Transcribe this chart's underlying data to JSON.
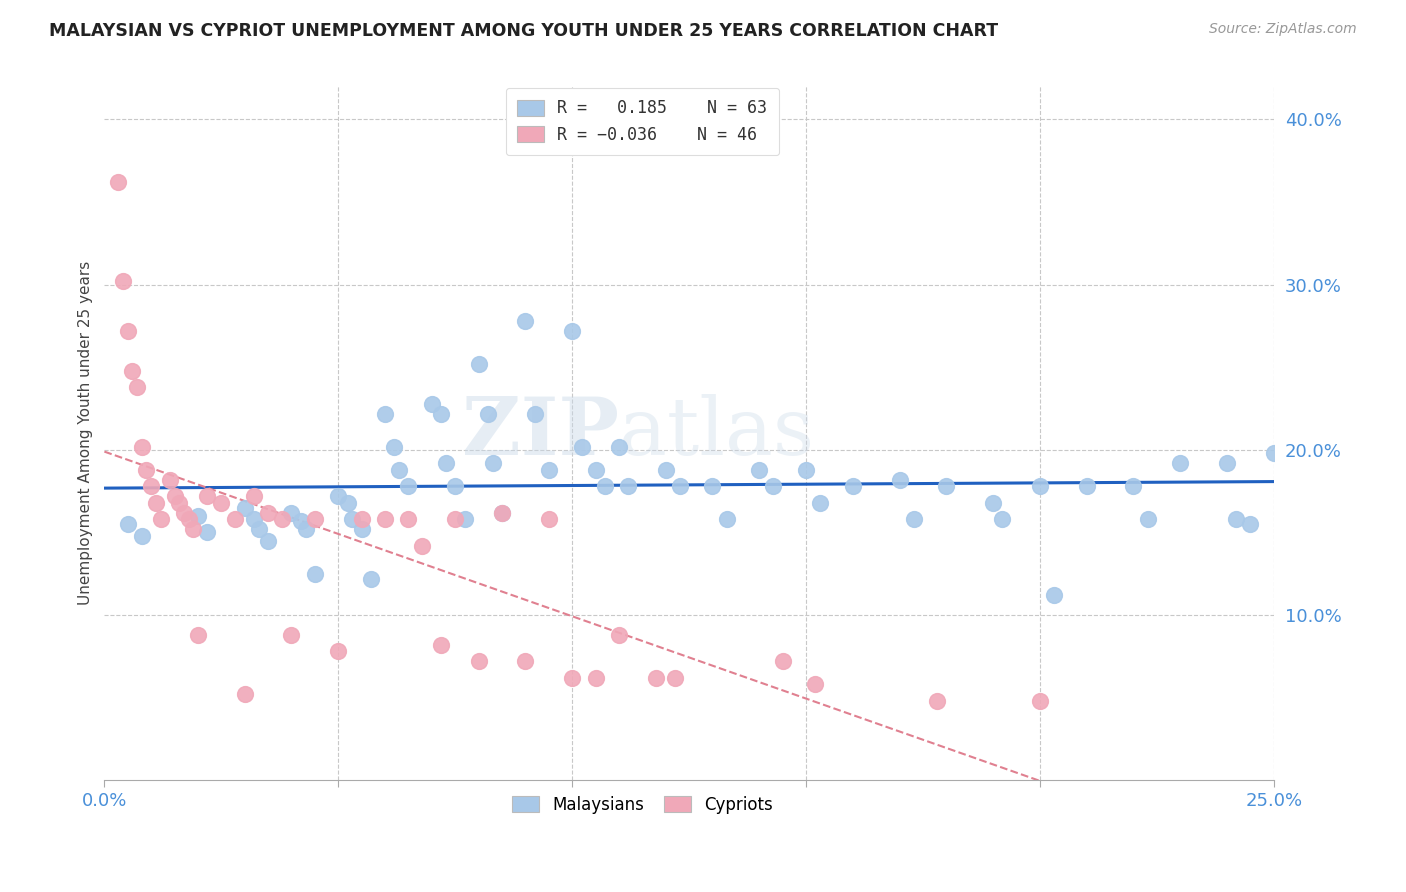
{
  "title": "MALAYSIAN VS CYPRIOT UNEMPLOYMENT AMONG YOUTH UNDER 25 YEARS CORRELATION CHART",
  "source": "Source: ZipAtlas.com",
  "ylabel": "Unemployment Among Youth under 25 years",
  "xlim": [
    0,
    0.25
  ],
  "ylim": [
    0,
    0.42
  ],
  "malaysian_color": "#a8c8e8",
  "cypriot_color": "#f0a8b8",
  "trend_blue": "#2060c0",
  "trend_pink": "#e08090",
  "background": "#ffffff",
  "grid_color": "#c8c8c8",
  "watermark_zip": "ZIP",
  "watermark_atlas": "atlas",
  "malaysian_x": [
    0.005,
    0.008,
    0.02,
    0.022,
    0.03,
    0.032,
    0.033,
    0.035,
    0.04,
    0.042,
    0.043,
    0.045,
    0.05,
    0.052,
    0.053,
    0.055,
    0.057,
    0.06,
    0.062,
    0.063,
    0.065,
    0.07,
    0.072,
    0.073,
    0.075,
    0.077,
    0.08,
    0.082,
    0.083,
    0.085,
    0.09,
    0.092,
    0.095,
    0.1,
    0.102,
    0.105,
    0.107,
    0.11,
    0.112,
    0.12,
    0.123,
    0.13,
    0.133,
    0.14,
    0.143,
    0.15,
    0.153,
    0.16,
    0.17,
    0.173,
    0.18,
    0.19,
    0.192,
    0.2,
    0.203,
    0.21,
    0.22,
    0.223,
    0.23,
    0.24,
    0.242,
    0.245,
    0.25
  ],
  "malaysian_y": [
    0.155,
    0.148,
    0.16,
    0.15,
    0.165,
    0.158,
    0.152,
    0.145,
    0.162,
    0.157,
    0.152,
    0.125,
    0.172,
    0.168,
    0.158,
    0.152,
    0.122,
    0.222,
    0.202,
    0.188,
    0.178,
    0.228,
    0.222,
    0.192,
    0.178,
    0.158,
    0.252,
    0.222,
    0.192,
    0.162,
    0.278,
    0.222,
    0.188,
    0.272,
    0.202,
    0.188,
    0.178,
    0.202,
    0.178,
    0.188,
    0.178,
    0.178,
    0.158,
    0.188,
    0.178,
    0.188,
    0.168,
    0.178,
    0.182,
    0.158,
    0.178,
    0.168,
    0.158,
    0.178,
    0.112,
    0.178,
    0.178,
    0.158,
    0.192,
    0.192,
    0.158,
    0.155,
    0.198
  ],
  "cypriot_x": [
    0.003,
    0.004,
    0.005,
    0.006,
    0.007,
    0.008,
    0.009,
    0.01,
    0.011,
    0.012,
    0.014,
    0.015,
    0.016,
    0.017,
    0.018,
    0.019,
    0.02,
    0.022,
    0.025,
    0.028,
    0.03,
    0.032,
    0.035,
    0.038,
    0.04,
    0.045,
    0.05,
    0.055,
    0.06,
    0.065,
    0.068,
    0.072,
    0.075,
    0.08,
    0.085,
    0.09,
    0.095,
    0.1,
    0.105,
    0.11,
    0.118,
    0.122,
    0.145,
    0.152,
    0.178,
    0.2
  ],
  "cypriot_y": [
    0.362,
    0.302,
    0.272,
    0.248,
    0.238,
    0.202,
    0.188,
    0.178,
    0.168,
    0.158,
    0.182,
    0.172,
    0.168,
    0.162,
    0.158,
    0.152,
    0.088,
    0.172,
    0.168,
    0.158,
    0.052,
    0.172,
    0.162,
    0.158,
    0.088,
    0.158,
    0.078,
    0.158,
    0.158,
    0.158,
    0.142,
    0.082,
    0.158,
    0.072,
    0.162,
    0.072,
    0.158,
    0.062,
    0.062,
    0.088,
    0.062,
    0.062,
    0.072,
    0.058,
    0.048,
    0.048
  ]
}
